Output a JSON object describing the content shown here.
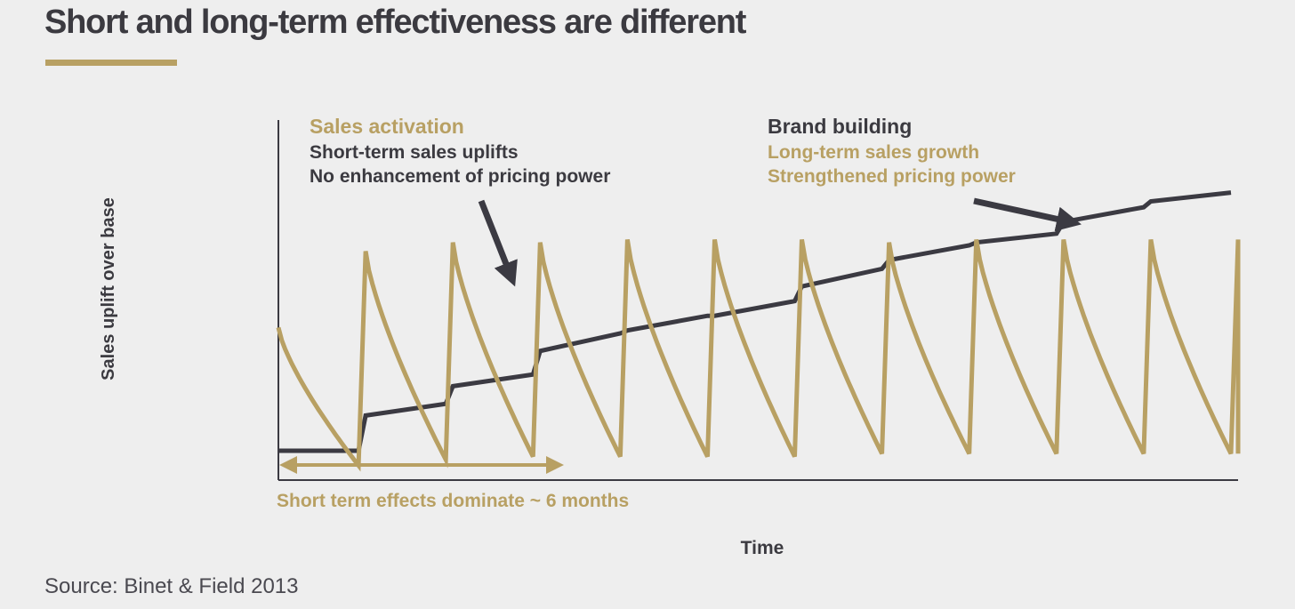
{
  "title": "Short and long-term effectiveness are different",
  "source": "Source: Binet & Field 2013",
  "colors": {
    "gold": "#b8a063",
    "dark": "#3b3a42",
    "text_dark": "#3b3a40"
  },
  "chart_data": {
    "type": "line",
    "xlabel": "Time",
    "ylabel": "Sales uplift over base",
    "grid": false,
    "series": [
      {
        "name": "Sales activation",
        "style": "sawtooth",
        "values": [
          [
            0,
            0.52,
            0.05
          ],
          [
            1,
            0.78,
            0.07
          ],
          [
            2,
            0.81,
            0.08
          ],
          [
            3,
            0.81,
            0.08
          ],
          [
            4,
            0.82,
            0.08
          ],
          [
            5,
            0.82,
            0.08
          ],
          [
            6,
            0.82,
            0.09
          ],
          [
            7,
            0.81,
            0.09
          ],
          [
            8,
            0.82,
            0.09
          ],
          [
            9,
            0.82,
            0.09
          ],
          [
            10,
            0.82,
            0.09
          ],
          [
            11,
            0.82,
            0.09
          ]
        ]
      },
      {
        "name": "Brand building",
        "style": "staircase",
        "values": [
          [
            0,
            0.1,
            0.1
          ],
          [
            1,
            0.22,
            0.26
          ],
          [
            2,
            0.32,
            0.36
          ],
          [
            3,
            0.44,
            0.5
          ],
          [
            4,
            0.51,
            0.56
          ],
          [
            5,
            0.56,
            0.61
          ],
          [
            6,
            0.66,
            0.72
          ],
          [
            7,
            0.75,
            0.8
          ],
          [
            8,
            0.81,
            0.84
          ],
          [
            9,
            0.88,
            0.93
          ],
          [
            10,
            0.95,
            0.98
          ]
        ]
      }
    ],
    "annotations": {
      "sales_activation": {
        "heading": "Sales activation",
        "lines": [
          "Short-term sales uplifts",
          "No enhancement of pricing power"
        ]
      },
      "brand_building": {
        "heading": "Brand building",
        "lines": [
          "Long-term sales growth",
          "Strengthened pricing power"
        ]
      },
      "short_term_span": "Short term effects dominate ~ 6 months"
    }
  }
}
